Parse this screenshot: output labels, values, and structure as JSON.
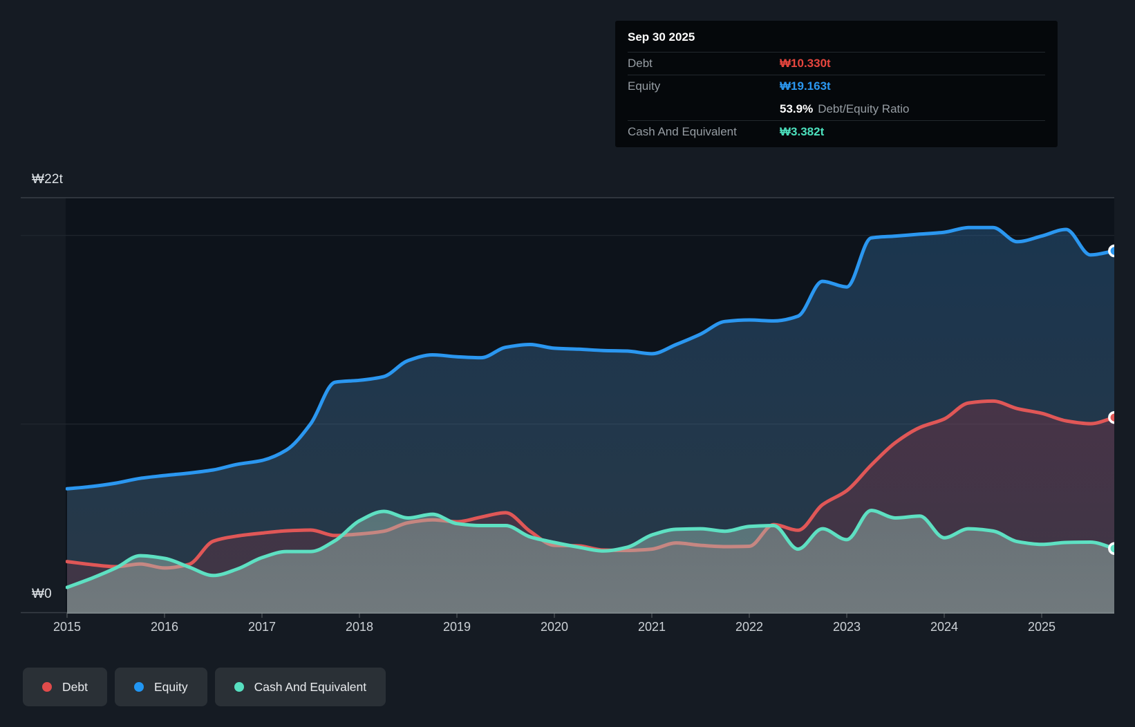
{
  "page": {
    "bg": "#151b23",
    "plot_bg": "#0d131b"
  },
  "y_axis": {
    "top_label": "₩22t",
    "zero_label": "₩0"
  },
  "x_axis": {
    "labels": [
      "2015",
      "2016",
      "2017",
      "2018",
      "2019",
      "2020",
      "2021",
      "2022",
      "2023",
      "2024",
      "2025"
    ]
  },
  "tooltip": {
    "date": "Sep 30 2025",
    "debt_label": "Debt",
    "debt_value": "₩10.330t",
    "debt_color": "#e8463e",
    "equity_label": "Equity",
    "equity_value": "₩19.163t",
    "equity_color": "#2b97f0",
    "ratio_value": "53.9%",
    "ratio_label": "Debt/Equity Ratio",
    "cash_label": "Cash And Equivalent",
    "cash_value": "₩3.382t",
    "cash_color": "#4ce0bd"
  },
  "legend": [
    {
      "label": "Debt",
      "color": "#e14b4b"
    },
    {
      "label": "Equity",
      "color": "#2196f3"
    },
    {
      "label": "Cash And Equivalent",
      "color": "#57dfc0"
    }
  ],
  "chart_data": {
    "type": "area",
    "title": "Debt to Equity History",
    "x_unit": "year (quarterly points)",
    "ylabel": "KRW, trillions",
    "ylim": [
      0,
      22
    ],
    "gridlines_t": [
      22,
      20,
      10,
      0
    ],
    "legend_position": "bottom-left",
    "x": [
      2015.0,
      2015.25,
      2015.5,
      2015.75,
      2016.0,
      2016.25,
      2016.5,
      2016.75,
      2017.0,
      2017.25,
      2017.5,
      2017.75,
      2018.0,
      2018.25,
      2018.5,
      2018.75,
      2019.0,
      2019.25,
      2019.5,
      2019.75,
      2020.0,
      2020.25,
      2020.5,
      2020.75,
      2021.0,
      2021.25,
      2021.5,
      2021.75,
      2022.0,
      2022.25,
      2022.5,
      2022.75,
      2023.0,
      2023.25,
      2023.5,
      2023.75,
      2024.0,
      2024.25,
      2024.5,
      2024.75,
      2025.0,
      2025.25,
      2025.5,
      2025.747
    ],
    "draw_order": [
      1,
      0,
      2
    ],
    "series": [
      {
        "name": "Debt",
        "color": "#e05757",
        "fill_top": "rgba(150,45,62,0.45)",
        "fill_bottom": "rgba(150,45,62,0.20)",
        "end_value_t": 10.33,
        "values": [
          2.69,
          2.53,
          2.42,
          2.56,
          2.35,
          2.54,
          3.77,
          4.05,
          4.2,
          4.32,
          4.36,
          4.07,
          4.15,
          4.3,
          4.75,
          4.9,
          4.8,
          5.05,
          5.28,
          4.3,
          3.55,
          3.52,
          3.3,
          3.28,
          3.35,
          3.68,
          3.55,
          3.48,
          3.5,
          4.65,
          4.35,
          5.7,
          6.45,
          7.8,
          9.0,
          9.8,
          10.25,
          11.1,
          11.2,
          10.8,
          10.55,
          10.15,
          10.0,
          10.33
        ]
      },
      {
        "name": "Equity",
        "color": "#2b97f0",
        "fill_top": "rgba(42,100,152,0.42)",
        "fill_bottom": "rgba(84,118,144,0.38)",
        "end_value_t": 19.163,
        "values": [
          6.55,
          6.67,
          6.85,
          7.1,
          7.25,
          7.38,
          7.55,
          7.85,
          8.05,
          8.6,
          10.0,
          12.2,
          12.3,
          12.5,
          13.35,
          13.65,
          13.55,
          13.5,
          14.05,
          14.2,
          14.0,
          13.95,
          13.88,
          13.85,
          13.71,
          14.2,
          14.75,
          15.42,
          15.5,
          15.45,
          15.7,
          17.55,
          17.25,
          19.85,
          19.95,
          20.05,
          20.15,
          20.4,
          20.4,
          19.65,
          19.95,
          20.3,
          18.95,
          19.163
        ]
      },
      {
        "name": "Cash And Equivalent",
        "color": "#5ee0c2",
        "fill_top": "rgba(118,190,172,0.28)",
        "fill_bottom": "rgba(172,200,190,0.46)",
        "end_value_t": 3.382,
        "values": [
          1.32,
          1.8,
          2.35,
          3.0,
          2.86,
          2.4,
          1.95,
          2.3,
          2.9,
          3.22,
          3.22,
          3.8,
          4.85,
          5.35,
          5.0,
          5.2,
          4.7,
          4.6,
          4.6,
          4.0,
          3.7,
          3.45,
          3.25,
          3.45,
          4.1,
          4.4,
          4.43,
          4.3,
          4.55,
          4.6,
          3.35,
          4.43,
          3.85,
          5.4,
          5.0,
          5.1,
          3.95,
          4.43,
          4.31,
          3.75,
          3.6,
          3.7,
          3.72,
          3.382
        ]
      }
    ]
  }
}
